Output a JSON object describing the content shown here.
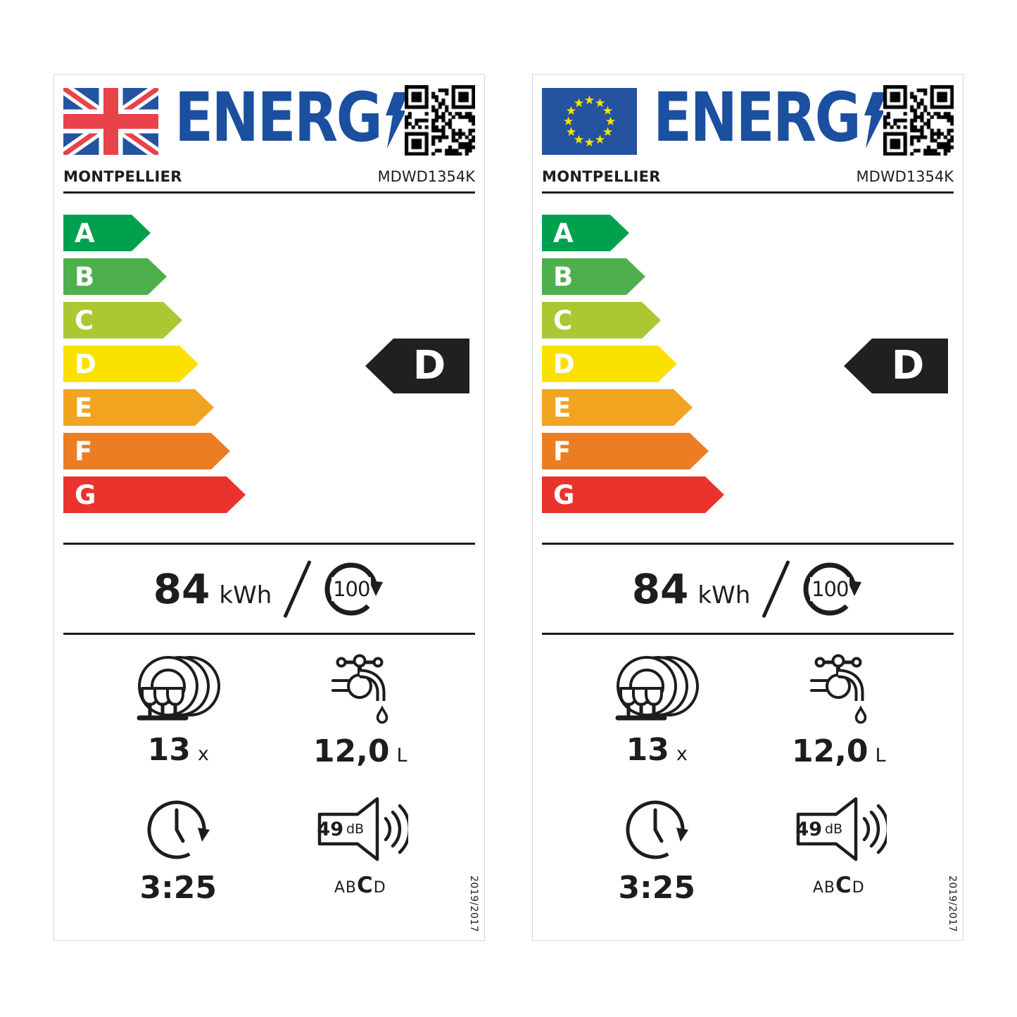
{
  "colors": {
    "logo_blue": "#1b4f9f",
    "text": "#1d1d1b",
    "rated_arrow_bg": "#221f20",
    "flag_blue": "#24539f",
    "flag_red": "#e8424b",
    "eu_star_yellow": "#f6e200",
    "class_a": "#00a14e",
    "class_b": "#4eb04c",
    "class_c": "#abc832",
    "class_d": "#fbe100",
    "class_e": "#f1a41f",
    "class_f": "#ec7d23",
    "class_g": "#e9332c"
  },
  "labels": [
    {
      "region_flag": "uk-flag",
      "logo_text": "ENERG",
      "brand": "MONTPELLIER",
      "model": "MDWD1354K",
      "energy_classes": [
        {
          "letter": "A",
          "color": "#00a14e"
        },
        {
          "letter": "B",
          "color": "#4eb04c"
        },
        {
          "letter": "C",
          "color": "#abc832"
        },
        {
          "letter": "D",
          "color": "#fbe100"
        },
        {
          "letter": "E",
          "color": "#f1a41f"
        },
        {
          "letter": "F",
          "color": "#ec7d23"
        },
        {
          "letter": "G",
          "color": "#e9332c"
        }
      ],
      "rated_class": "D",
      "energy": {
        "value": "84",
        "unit": "kWh",
        "cycles": "100"
      },
      "place_settings": {
        "value": "13",
        "unit": "x"
      },
      "water": {
        "value": "12,0",
        "unit": "L"
      },
      "duration": "3:25",
      "noise": {
        "value": "49",
        "unit": "dB",
        "scale_pre": "AB",
        "scale_current": "C",
        "scale_post": "D"
      },
      "regulation": "2019/2017"
    },
    {
      "region_flag": "eu-flag",
      "logo_text": "ENERG",
      "brand": "MONTPELLIER",
      "model": "MDWD1354K",
      "energy_classes": [
        {
          "letter": "A",
          "color": "#00a14e"
        },
        {
          "letter": "B",
          "color": "#4eb04c"
        },
        {
          "letter": "C",
          "color": "#abc832"
        },
        {
          "letter": "D",
          "color": "#fbe100"
        },
        {
          "letter": "E",
          "color": "#f1a41f"
        },
        {
          "letter": "F",
          "color": "#ec7d23"
        },
        {
          "letter": "G",
          "color": "#e9332c"
        }
      ],
      "rated_class": "D",
      "energy": {
        "value": "84",
        "unit": "kWh",
        "cycles": "100"
      },
      "place_settings": {
        "value": "13",
        "unit": "x"
      },
      "water": {
        "value": "12,0",
        "unit": "L"
      },
      "duration": "3:25",
      "noise": {
        "value": "49",
        "unit": "dB",
        "scale_pre": "AB",
        "scale_current": "C",
        "scale_post": "D"
      },
      "regulation": "2019/2017"
    }
  ]
}
